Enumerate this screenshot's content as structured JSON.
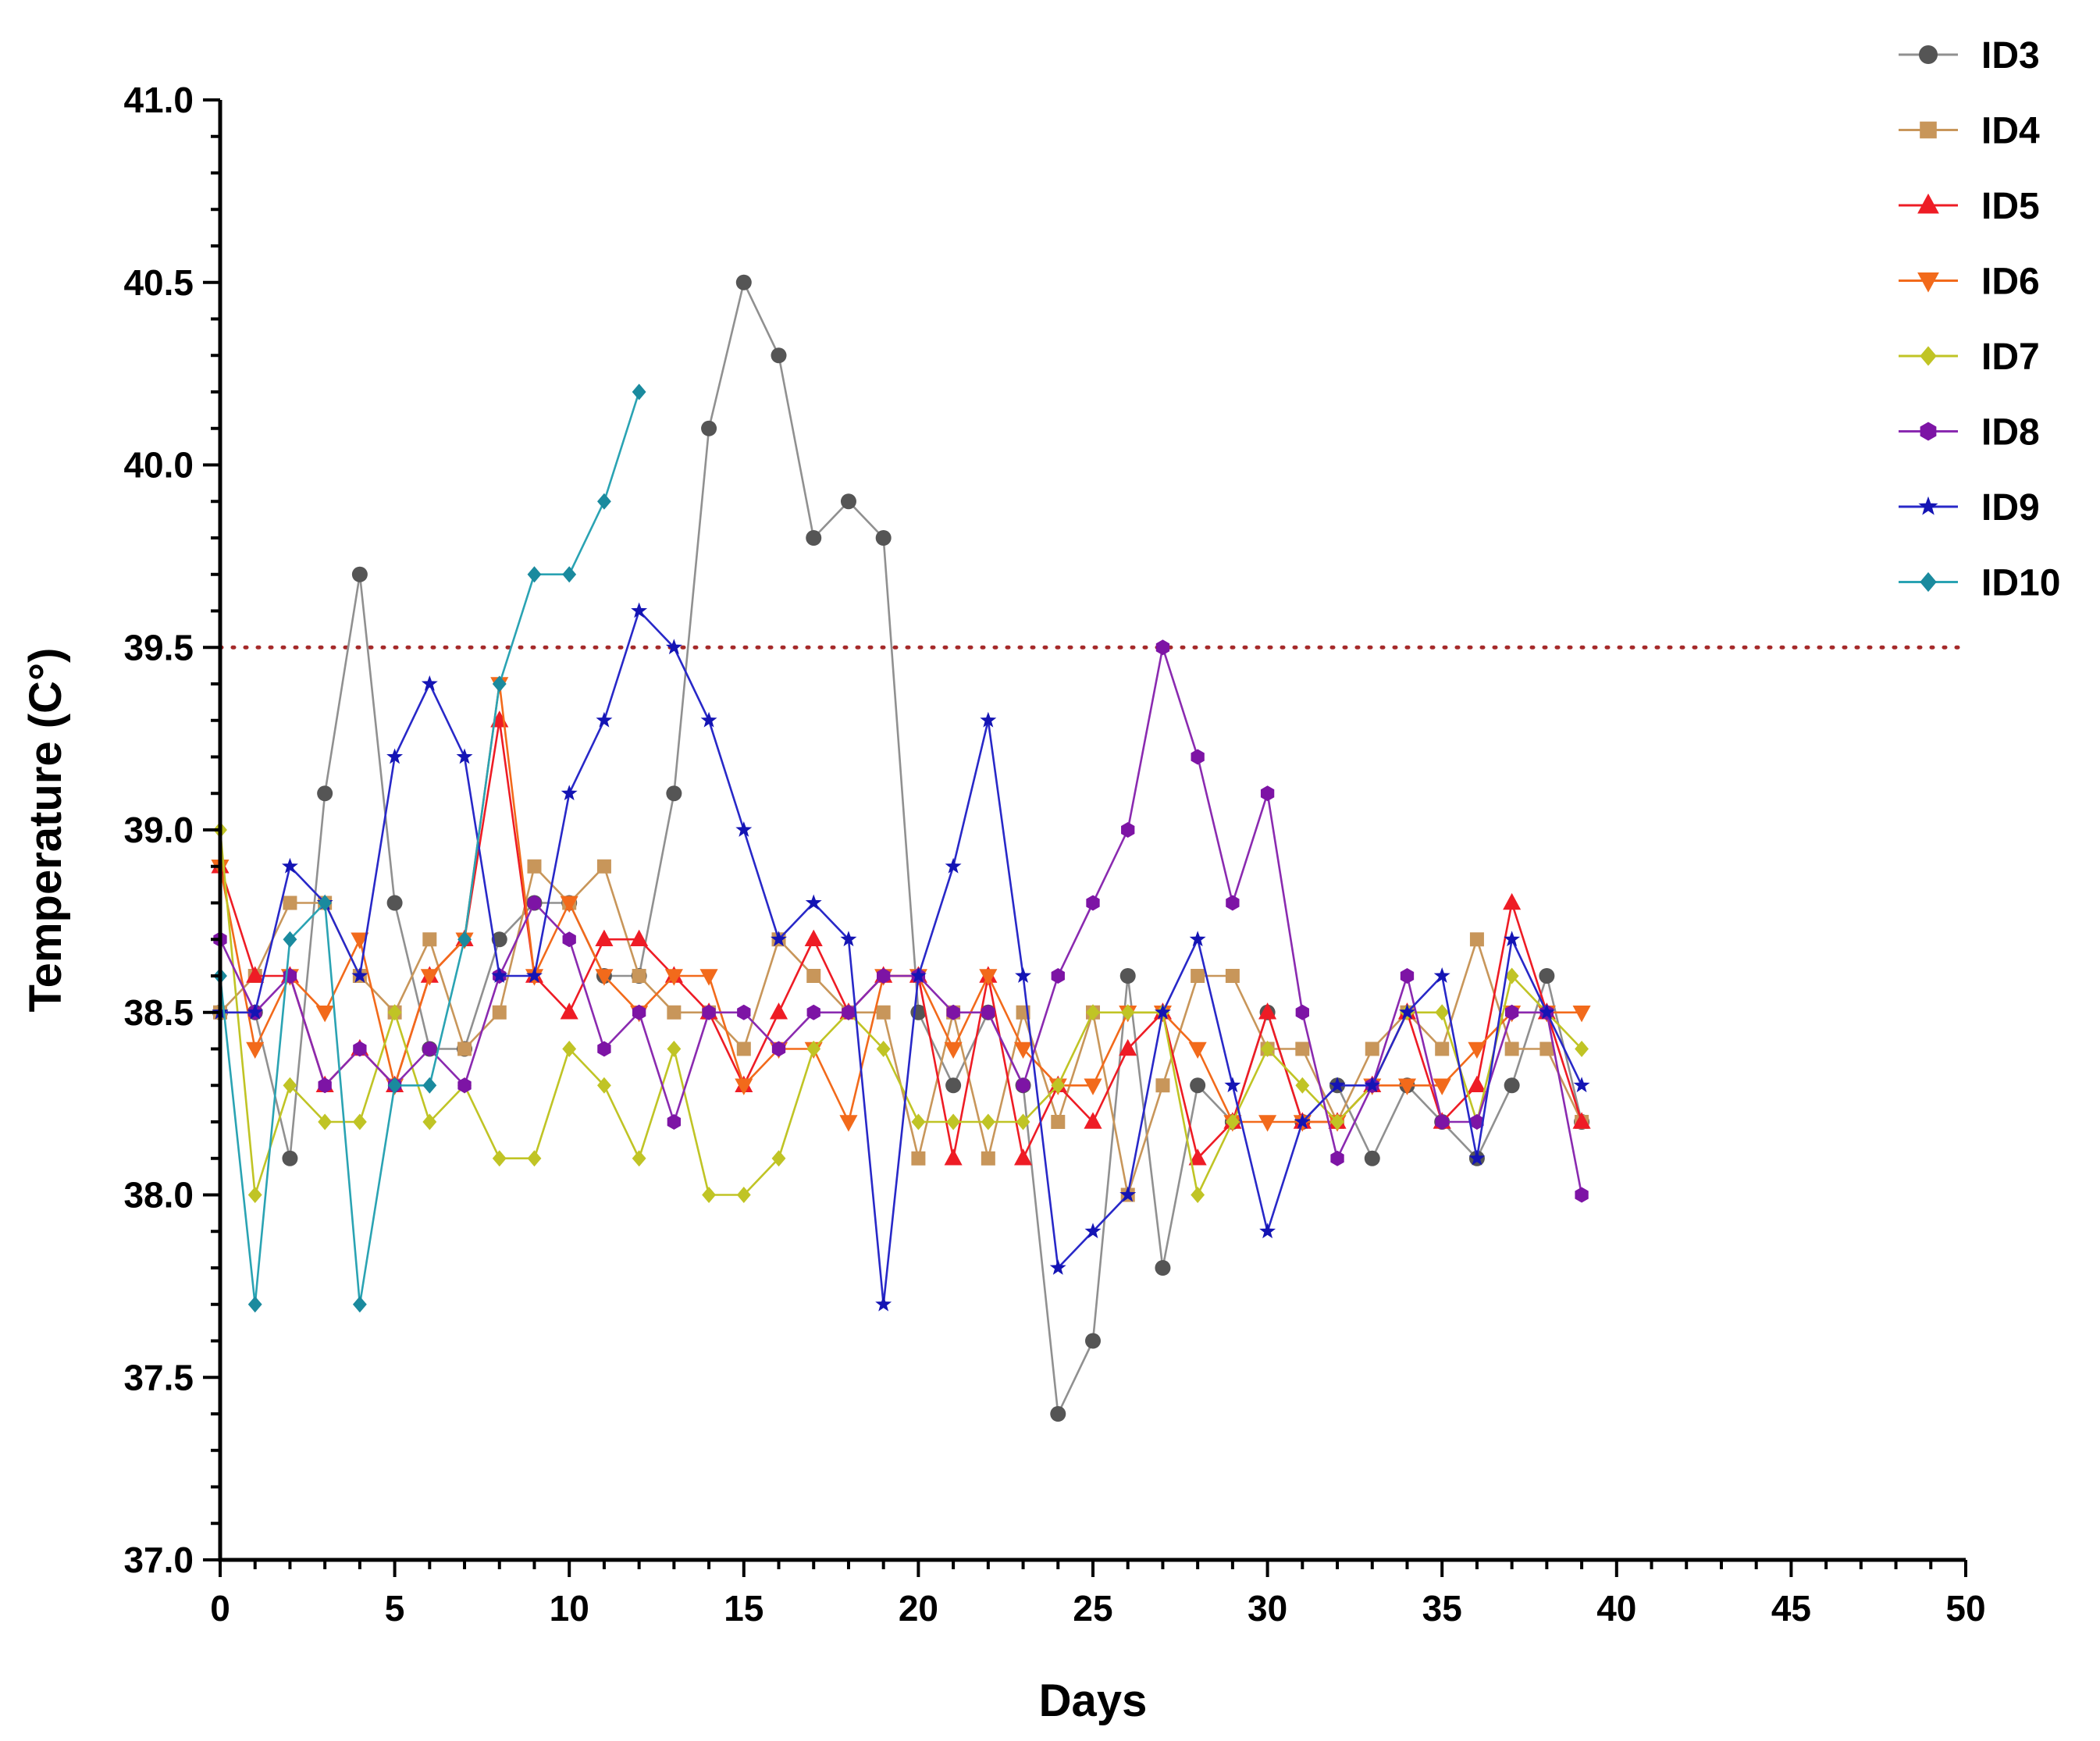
{
  "chart_data": {
    "type": "line",
    "xlabel": "Days",
    "ylabel": "Temperature (C°)",
    "xlim": [
      0,
      50
    ],
    "ylim": [
      37.0,
      41.0
    ],
    "x_ticks": [
      0,
      5,
      10,
      15,
      20,
      25,
      30,
      35,
      40,
      45,
      50
    ],
    "y_ticks": [
      37.0,
      37.5,
      38.0,
      38.5,
      39.0,
      39.5,
      40.0,
      40.5,
      41.0
    ],
    "y_tick_labels": [
      "37.0",
      "37.5",
      "38.0",
      "38.5",
      "39.0",
      "39.5",
      "40.0",
      "40.5",
      "41.0"
    ],
    "threshold": {
      "value": 39.5,
      "color": "#a52a2a",
      "style": "dotted"
    },
    "legend_position": "top-right",
    "series": [
      {
        "name": "ID3",
        "color": "#555555",
        "line_color": "#909090",
        "marker": "circle",
        "x": [
          0,
          1,
          2,
          3,
          4,
          5,
          6,
          7,
          8,
          9,
          10,
          11,
          12,
          13,
          14,
          15,
          16,
          17,
          18,
          19,
          20,
          21,
          22,
          23,
          24,
          25,
          26,
          27,
          28,
          29,
          30,
          31,
          32,
          33,
          34,
          35,
          36,
          37,
          38,
          39
        ],
        "values": [
          38.5,
          38.5,
          38.1,
          39.1,
          39.7,
          38.8,
          38.4,
          38.4,
          38.7,
          38.8,
          38.8,
          38.6,
          38.6,
          39.1,
          40.1,
          40.5,
          40.3,
          39.8,
          39.9,
          39.8,
          38.5,
          38.3,
          38.5,
          38.3,
          37.4,
          37.6,
          38.6,
          37.8,
          38.3,
          38.2,
          38.5,
          38.2,
          38.3,
          38.1,
          38.3,
          38.2,
          38.1,
          38.3,
          38.6,
          38.2
        ]
      },
      {
        "name": "ID4",
        "color": "#c8965a",
        "line_color": "#c8965a",
        "marker": "square",
        "x": [
          0,
          1,
          2,
          3,
          4,
          5,
          6,
          7,
          8,
          9,
          10,
          11,
          12,
          13,
          14,
          15,
          16,
          17,
          18,
          19,
          20,
          21,
          22,
          23,
          24,
          25,
          26,
          27,
          28,
          29,
          30,
          31,
          32,
          33,
          34,
          35,
          36,
          37,
          38,
          39
        ],
        "values": [
          38.5,
          38.6,
          38.8,
          38.8,
          38.6,
          38.5,
          38.7,
          38.4,
          38.5,
          38.9,
          38.8,
          38.9,
          38.6,
          38.5,
          38.5,
          38.4,
          38.7,
          38.6,
          38.5,
          38.5,
          38.1,
          38.5,
          38.1,
          38.5,
          38.2,
          38.5,
          38.0,
          38.3,
          38.6,
          38.6,
          38.4,
          38.4,
          38.2,
          38.4,
          38.5,
          38.4,
          38.7,
          38.4,
          38.4,
          38.2
        ]
      },
      {
        "name": "ID5",
        "color": "#ee1c25",
        "line_color": "#ee1c25",
        "marker": "triangle-up",
        "x": [
          0,
          1,
          2,
          3,
          4,
          5,
          6,
          7,
          8,
          9,
          10,
          11,
          12,
          13,
          14,
          15,
          16,
          17,
          18,
          19,
          20,
          21,
          22,
          23,
          24,
          25,
          26,
          27,
          28,
          29,
          30,
          31,
          32,
          33,
          34,
          35,
          36,
          37,
          38,
          39
        ],
        "values": [
          38.9,
          38.6,
          38.6,
          38.3,
          38.4,
          38.3,
          38.6,
          38.7,
          39.3,
          38.6,
          38.5,
          38.7,
          38.7,
          38.6,
          38.5,
          38.3,
          38.5,
          38.7,
          38.5,
          38.6,
          38.6,
          38.1,
          38.6,
          38.1,
          38.3,
          38.2,
          38.4,
          38.5,
          38.1,
          38.2,
          38.5,
          38.2,
          38.2,
          38.3,
          38.5,
          38.2,
          38.3,
          38.8,
          38.5,
          38.2
        ]
      },
      {
        "name": "ID6",
        "color": "#f26a1b",
        "line_color": "#f26a1b",
        "marker": "triangle-down",
        "x": [
          0,
          1,
          2,
          3,
          4,
          5,
          6,
          7,
          8,
          9,
          10,
          11,
          12,
          13,
          14,
          15,
          16,
          17,
          18,
          19,
          20,
          21,
          22,
          23,
          24,
          25,
          26,
          27,
          28,
          29,
          30,
          31,
          32,
          33,
          34,
          35,
          36,
          37,
          38,
          39
        ],
        "values": [
          38.9,
          38.4,
          38.6,
          38.5,
          38.7,
          38.3,
          38.6,
          38.7,
          39.4,
          38.6,
          38.8,
          38.6,
          38.5,
          38.6,
          38.6,
          38.3,
          38.4,
          38.4,
          38.2,
          38.6,
          38.6,
          38.4,
          38.6,
          38.4,
          38.3,
          38.3,
          38.5,
          38.5,
          38.4,
          38.2,
          38.2,
          38.2,
          38.2,
          38.3,
          38.3,
          38.3,
          38.4,
          38.5,
          38.5,
          38.5
        ]
      },
      {
        "name": "ID7",
        "color": "#c0c425",
        "line_color": "#c0c425",
        "marker": "diamond",
        "x": [
          0,
          1,
          2,
          3,
          4,
          5,
          6,
          7,
          8,
          9,
          10,
          11,
          12,
          13,
          14,
          15,
          16,
          17,
          18,
          19,
          20,
          21,
          22,
          23,
          24,
          25,
          26,
          27,
          28,
          29,
          30,
          31,
          32,
          33,
          34,
          35,
          36,
          37,
          38,
          39
        ],
        "values": [
          39.0,
          38.0,
          38.3,
          38.2,
          38.2,
          38.5,
          38.2,
          38.3,
          38.1,
          38.1,
          38.4,
          38.3,
          38.1,
          38.4,
          38.0,
          38.0,
          38.1,
          38.4,
          38.5,
          38.4,
          38.2,
          38.2,
          38.2,
          38.2,
          38.3,
          38.5,
          38.5,
          38.5,
          38.0,
          38.2,
          38.4,
          38.3,
          38.2,
          38.3,
          38.5,
          38.5,
          38.2,
          38.6,
          38.5,
          38.4
        ]
      },
      {
        "name": "ID8",
        "color": "#7d14a5",
        "line_color": "#8a2ab0",
        "marker": "hexagon",
        "x": [
          0,
          1,
          2,
          3,
          4,
          5,
          6,
          7,
          8,
          9,
          10,
          11,
          12,
          13,
          14,
          15,
          16,
          17,
          18,
          19,
          20,
          21,
          22,
          23,
          24,
          25,
          26,
          27,
          28,
          29,
          30,
          31,
          32,
          33,
          34,
          35,
          36,
          37,
          38,
          39
        ],
        "values": [
          38.7,
          38.5,
          38.6,
          38.3,
          38.4,
          38.3,
          38.4,
          38.3,
          38.6,
          38.8,
          38.7,
          38.4,
          38.5,
          38.2,
          38.5,
          38.5,
          38.4,
          38.5,
          38.5,
          38.6,
          38.6,
          38.5,
          38.5,
          38.3,
          38.6,
          38.8,
          39.0,
          39.5,
          39.2,
          38.8,
          39.1,
          38.5,
          38.1,
          38.3,
          38.6,
          38.2,
          38.2,
          38.5,
          38.5,
          38.0
        ]
      },
      {
        "name": "ID9",
        "color": "#1414b4",
        "line_color": "#2828c8",
        "marker": "star",
        "x": [
          0,
          1,
          2,
          3,
          4,
          5,
          6,
          7,
          8,
          9,
          10,
          11,
          12,
          13,
          14,
          15,
          16,
          17,
          18,
          19,
          20,
          21,
          22,
          23,
          24,
          25,
          26,
          27,
          28,
          29,
          30,
          31,
          32,
          33,
          34,
          35,
          36,
          37,
          38,
          39
        ],
        "values": [
          38.5,
          38.5,
          38.9,
          38.8,
          38.6,
          39.2,
          39.4,
          39.2,
          38.6,
          38.6,
          39.1,
          39.3,
          39.6,
          39.5,
          39.3,
          39.0,
          38.7,
          38.8,
          38.7,
          37.7,
          38.6,
          38.9,
          39.3,
          38.6,
          37.8,
          37.9,
          38.0,
          38.5,
          38.7,
          38.3,
          37.9,
          38.2,
          38.3,
          38.3,
          38.5,
          38.6,
          38.1,
          38.7,
          38.5,
          38.3
        ]
      },
      {
        "name": "ID10",
        "color": "#1a8a9e",
        "line_color": "#2aa3b3",
        "marker": "diamond",
        "x": [
          0,
          1,
          2,
          3,
          4,
          5,
          6,
          7,
          8,
          9,
          10,
          11,
          12
        ],
        "values": [
          38.6,
          37.7,
          38.7,
          38.8,
          37.7,
          38.3,
          38.3,
          38.7,
          39.4,
          39.7,
          39.7,
          39.9,
          40.2
        ]
      }
    ]
  }
}
